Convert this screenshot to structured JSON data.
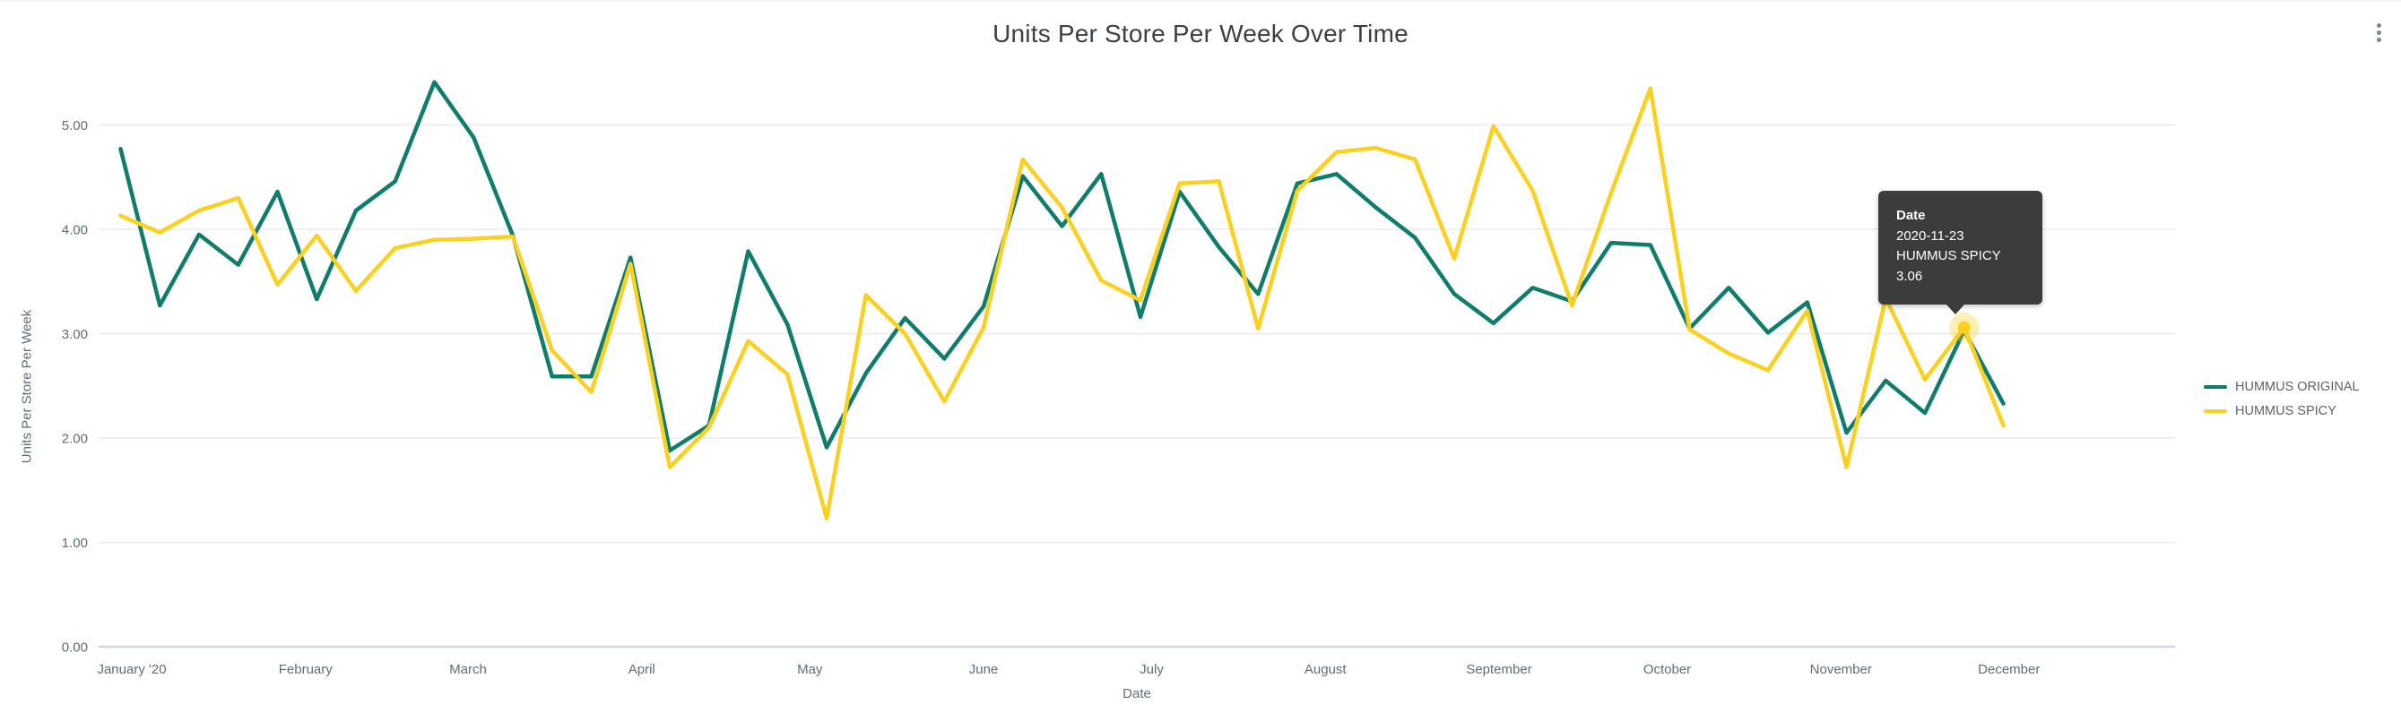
{
  "header": {
    "title": "Units Per Store Per Week Over Time",
    "menu_icon": "kebab-menu-icon"
  },
  "y_axis": {
    "title": "Units Per Store Per Week",
    "ticks": [
      "0.00",
      "1.00",
      "2.00",
      "3.00",
      "4.00",
      "5.00"
    ]
  },
  "x_axis": {
    "title": "Date",
    "ticks": [
      {
        "label": "January '20",
        "day": 2
      },
      {
        "label": "February",
        "day": 33
      },
      {
        "label": "March",
        "day": 62
      },
      {
        "label": "April",
        "day": 93
      },
      {
        "label": "May",
        "day": 123
      },
      {
        "label": "June",
        "day": 154
      },
      {
        "label": "July",
        "day": 184
      },
      {
        "label": "August",
        "day": 215
      },
      {
        "label": "September",
        "day": 246
      },
      {
        "label": "October",
        "day": 276
      },
      {
        "label": "November",
        "day": 307
      },
      {
        "label": "December",
        "day": 337
      }
    ]
  },
  "legend": {
    "items": [
      {
        "label": "HUMMUS ORIGINAL",
        "color": "#0e7d6c"
      },
      {
        "label": "HUMMUS SPICY",
        "color": "#fcd01f"
      }
    ]
  },
  "tooltip": {
    "label": "Date",
    "date": "2020-11-23",
    "series": "HUMMUS SPICY",
    "value": "3.06"
  },
  "chart_data": {
    "type": "line",
    "title": "Units Per Store Per Week Over Time",
    "xlabel": "Date",
    "ylabel": "Units Per Store Per Week",
    "ylim": [
      0,
      5.5
    ],
    "y_ticks": [
      0,
      1,
      2,
      3,
      4,
      5
    ],
    "grid": "horizontal",
    "legend_position": "right",
    "x": [
      "2019-12-30",
      "2020-01-06",
      "2020-01-13",
      "2020-01-20",
      "2020-01-27",
      "2020-02-03",
      "2020-02-10",
      "2020-02-17",
      "2020-02-24",
      "2020-03-02",
      "2020-03-09",
      "2020-03-16",
      "2020-03-23",
      "2020-03-30",
      "2020-04-06",
      "2020-04-13",
      "2020-04-20",
      "2020-04-27",
      "2020-05-04",
      "2020-05-11",
      "2020-05-18",
      "2020-05-25",
      "2020-06-01",
      "2020-06-08",
      "2020-06-15",
      "2020-06-22",
      "2020-06-29",
      "2020-07-06",
      "2020-07-13",
      "2020-07-20",
      "2020-07-27",
      "2020-08-03",
      "2020-08-10",
      "2020-08-17",
      "2020-08-24",
      "2020-08-31",
      "2020-09-07",
      "2020-09-14",
      "2020-09-21",
      "2020-09-28",
      "2020-10-05",
      "2020-10-12",
      "2020-10-19",
      "2020-10-26",
      "2020-11-02",
      "2020-11-09",
      "2020-11-16",
      "2020-11-23",
      "2020-11-30"
    ],
    "series": [
      {
        "name": "HUMMUS ORIGINAL",
        "color": "#0e7d6c",
        "values": [
          4.77,
          3.27,
          3.95,
          3.66,
          4.36,
          3.33,
          4.18,
          4.46,
          5.41,
          4.88,
          3.94,
          2.59,
          2.59,
          3.73,
          1.88,
          2.12,
          3.79,
          3.09,
          1.91,
          2.62,
          3.15,
          2.76,
          3.26,
          4.51,
          4.03,
          4.53,
          3.16,
          4.36,
          3.83,
          3.38,
          4.44,
          4.53,
          4.21,
          3.92,
          3.38,
          3.1,
          3.44,
          3.31,
          3.87,
          3.85,
          3.05,
          3.44,
          3.01,
          3.3,
          2.05,
          2.55,
          2.24,
          3.03,
          2.33
        ]
      },
      {
        "name": "HUMMUS SPICY",
        "color": "#fcd01f",
        "values": [
          4.13,
          3.97,
          4.18,
          4.3,
          3.47,
          3.94,
          3.41,
          3.82,
          3.9,
          3.91,
          3.93,
          2.84,
          2.44,
          3.67,
          1.72,
          2.1,
          2.93,
          2.61,
          1.23,
          3.37,
          3.0,
          2.35,
          3.06,
          4.67,
          4.21,
          3.51,
          3.32,
          4.44,
          4.46,
          3.05,
          4.37,
          4.74,
          4.78,
          4.67,
          3.72,
          4.99,
          4.37,
          3.27,
          4.35,
          5.35,
          3.04,
          2.81,
          2.65,
          3.22,
          1.72,
          3.34,
          2.56,
          3.06,
          2.12
        ]
      }
    ],
    "highlight": {
      "series": "HUMMUS SPICY",
      "date": "2020-11-23",
      "value": 3.06
    }
  }
}
